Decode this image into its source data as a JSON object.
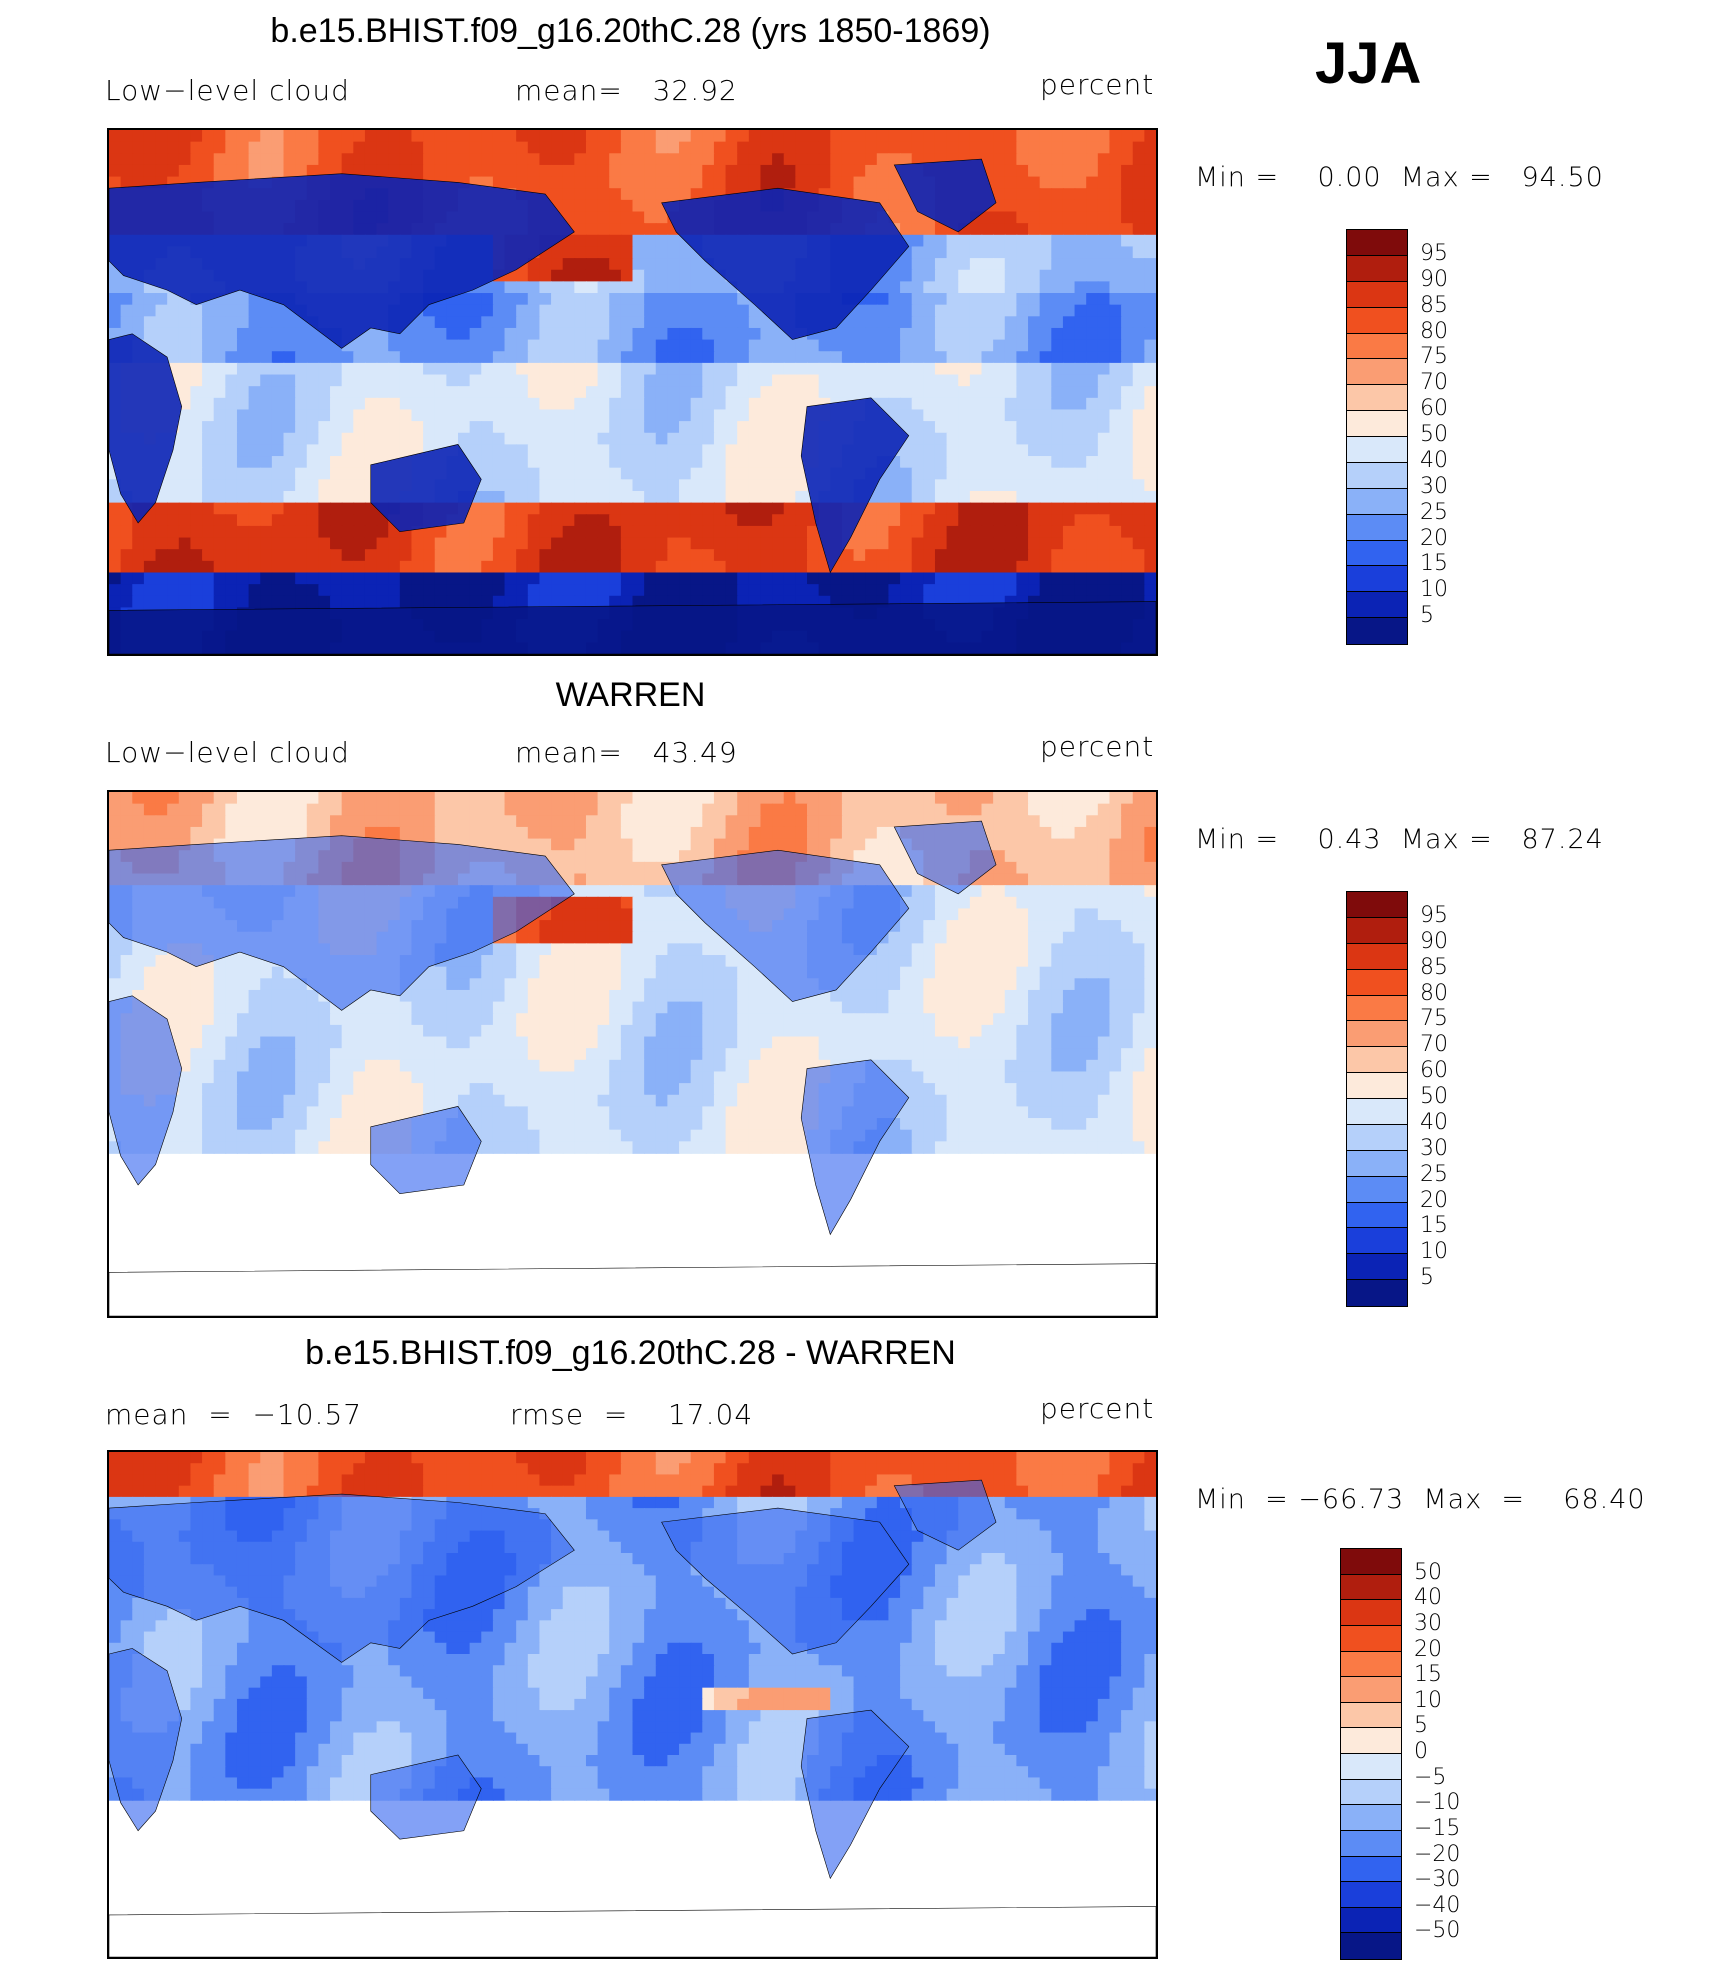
{
  "season": "JJA",
  "panels": [
    {
      "title": "b.e15.BHIST.f09_g16.20thC.28 (yrs 1850-1869)",
      "left_label": "Low−level cloud",
      "center_label": "mean=   32.92",
      "right_label": "percent",
      "minmax": "Min =    0.00  Max =   94.50",
      "colorbar_labels": [
        "95",
        "90",
        "85",
        "80",
        "75",
        "70",
        "60",
        "50",
        "40",
        "30",
        "25",
        "20",
        "15",
        "10",
        "5"
      ],
      "colorbar_colors": [
        "#7f0b0b",
        "#b01e0e",
        "#db3613",
        "#f0501f",
        "#fa7a45",
        "#fa9d73",
        "#fcc7a8",
        "#fdeadb",
        "#d9e8fa",
        "#b5d0fa",
        "#8ab1f8",
        "#5c8cf5",
        "#3163f0",
        "#1a3fdb",
        "#0b23b5",
        "#071687"
      ],
      "field": "model"
    },
    {
      "title": "WARREN",
      "left_label": "Low−level cloud",
      "center_label": "mean=   43.49",
      "right_label": "percent",
      "minmax": "Min =    0.43  Max =   87.24",
      "colorbar_labels": [
        "95",
        "90",
        "85",
        "80",
        "75",
        "70",
        "60",
        "50",
        "40",
        "30",
        "25",
        "20",
        "15",
        "10",
        "5"
      ],
      "colorbar_colors": [
        "#7f0b0b",
        "#b01e0e",
        "#db3613",
        "#f0501f",
        "#fa7a45",
        "#fa9d73",
        "#fcc7a8",
        "#fdeadb",
        "#d9e8fa",
        "#b5d0fa",
        "#8ab1f8",
        "#5c8cf5",
        "#3163f0",
        "#1a3fdb",
        "#0b23b5",
        "#071687"
      ],
      "field": "obs"
    },
    {
      "title": "b.e15.BHIST.f09_g16.20thC.28 - WARREN",
      "left_label": "mean  =  −10.57",
      "center_label": "rmse  =    17.04",
      "right_label": "percent",
      "minmax": "Min  = −66.73  Max  =    68.40",
      "colorbar_labels": [
        "50",
        "40",
        "30",
        "20",
        "15",
        "10",
        "5",
        "0",
        "−5",
        "−10",
        "−15",
        "−20",
        "−30",
        "−40",
        "−50"
      ],
      "colorbar_colors": [
        "#7f0b0b",
        "#b01e0e",
        "#db3613",
        "#f0501f",
        "#fa7a45",
        "#fa9d73",
        "#fcc7a8",
        "#fdeadb",
        "#d9e8fa",
        "#b5d0fa",
        "#8ab1f8",
        "#5c8cf5",
        "#3163f0",
        "#1a3fdb",
        "#0b23b5",
        "#071687"
      ],
      "field": "diff"
    }
  ]
}
